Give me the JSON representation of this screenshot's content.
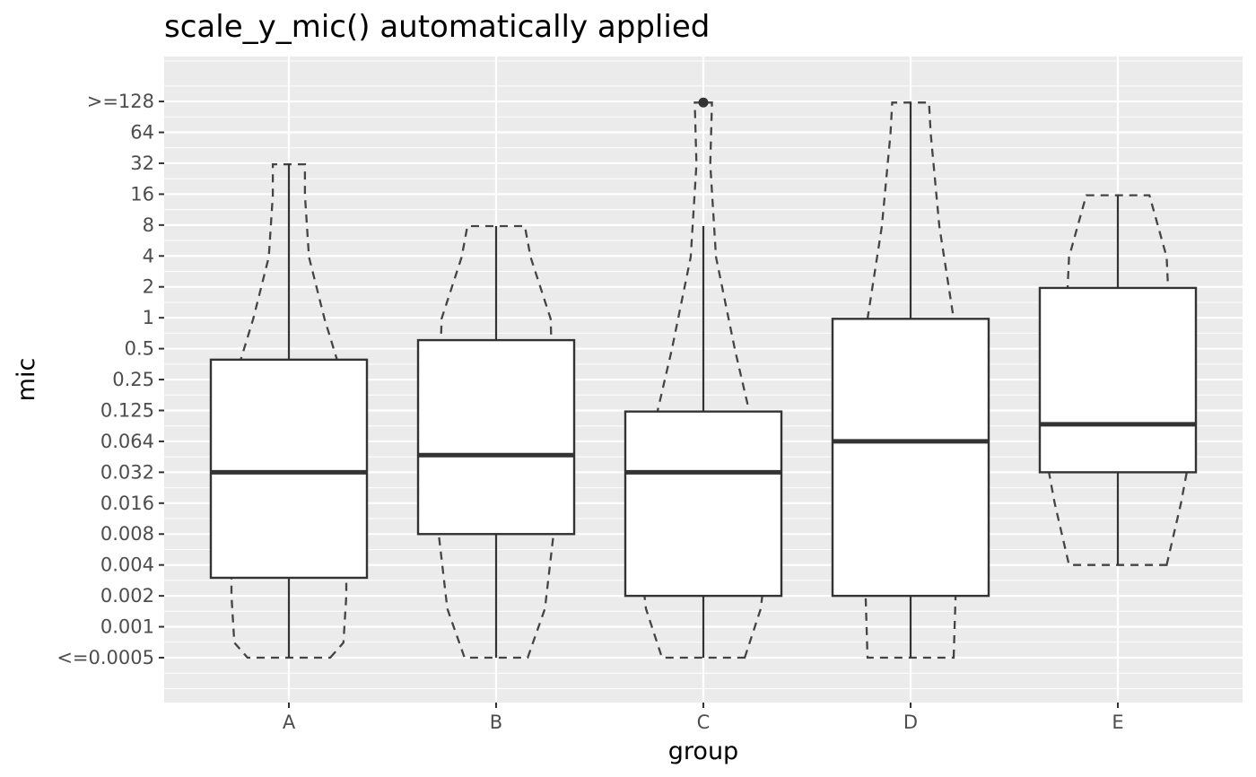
{
  "chart_data": {
    "type": "boxplot",
    "title": "scale_y_mic() automatically applied",
    "xlabel": "group",
    "ylabel": "mic",
    "y_scale": "log2",
    "y_tick_labels": [
      "<=0.0005",
      "0.001",
      "0.002",
      "0.004",
      "0.008",
      "0.016",
      "0.032",
      "0.064",
      "0.125",
      "0.25",
      "0.5",
      "1",
      "2",
      "4",
      "8",
      "16",
      "32",
      "64",
      ">=128"
    ],
    "categories": [
      "A",
      "B",
      "C",
      "D",
      "E"
    ],
    "boxes": [
      {
        "group": "A",
        "min": 0.0005,
        "q1": 0.003,
        "median": 0.032,
        "q3": 0.4,
        "max": 32,
        "outliers": []
      },
      {
        "group": "B",
        "min": 0.0005,
        "q1": 0.008,
        "median": 0.047,
        "q3": 0.62,
        "max": 8,
        "outliers": []
      },
      {
        "group": "C",
        "min": 0.0005,
        "q1": 0.002,
        "median": 0.032,
        "q3": 0.125,
        "max": 8,
        "outliers": [
          128
        ]
      },
      {
        "group": "D",
        "min": 0.0005,
        "q1": 0.002,
        "median": 0.064,
        "q3": 1,
        "max": 128,
        "outliers": []
      },
      {
        "group": "E",
        "min": 0.004,
        "q1": 0.032,
        "median": 0.094,
        "q3": 2,
        "max": 16,
        "outliers": []
      }
    ],
    "violin_style": "dashed",
    "grid": true,
    "legend": "none",
    "colors": {
      "panel": "#ebebeb",
      "grid": "#ffffff",
      "box_fill": "#ffffff",
      "box_line": "#333333",
      "violin_line": "#444444",
      "tick_text": "#4d4d4d"
    }
  }
}
